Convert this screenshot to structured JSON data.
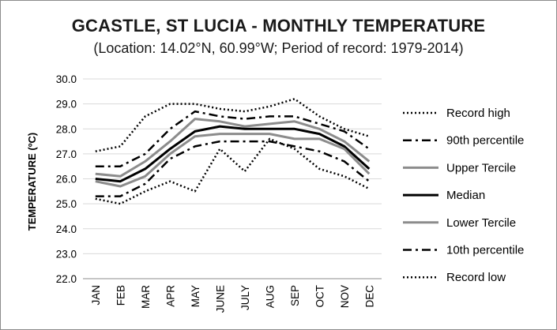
{
  "chart_data": {
    "type": "line",
    "title": "GCASTLE, ST LUCIA - MONTHLY TEMPERATURE",
    "subtitle": "(Location: 14.02°N, 60.99°W; Period of record: 1979-2014)",
    "xlabel": "",
    "ylabel": "TEMPERATURE (ºC)",
    "ylim": [
      22.0,
      30.0
    ],
    "yticks": [
      "22.0",
      "23.0",
      "24.0",
      "25.0",
      "26.0",
      "27.0",
      "28.0",
      "29.0",
      "30.0"
    ],
    "categories": [
      "JAN",
      "FEB",
      "MAR",
      "APR",
      "MAY",
      "JUNE",
      "JULY",
      "AUG",
      "SEP",
      "OCT",
      "NOV",
      "DEC"
    ],
    "grid": "horizontal",
    "legend_position": "right",
    "series": [
      {
        "name": "Record high",
        "style": "dotted",
        "color": "#000000",
        "values": [
          27.1,
          27.3,
          28.5,
          29.0,
          29.0,
          28.8,
          28.7,
          28.9,
          29.2,
          28.5,
          28.0,
          27.7
        ]
      },
      {
        "name": "90th percentile",
        "style": "dashdot",
        "color": "#000000",
        "values": [
          26.5,
          26.5,
          27.0,
          28.0,
          28.7,
          28.5,
          28.4,
          28.5,
          28.5,
          28.2,
          27.9,
          27.2
        ]
      },
      {
        "name": "Upper Tercile",
        "style": "solid",
        "color": "#8c8c8c",
        "values": [
          26.2,
          26.1,
          26.7,
          27.5,
          28.4,
          28.3,
          28.1,
          28.2,
          28.3,
          28.0,
          27.5,
          26.7
        ]
      },
      {
        "name": "Median",
        "style": "solid",
        "color": "#000000",
        "values": [
          26.0,
          25.9,
          26.4,
          27.2,
          27.9,
          28.1,
          28.0,
          28.0,
          28.0,
          27.8,
          27.3,
          26.4
        ]
      },
      {
        "name": "Lower Tercile",
        "style": "solid",
        "color": "#8c8c8c",
        "values": [
          25.9,
          25.7,
          26.1,
          27.0,
          27.7,
          27.8,
          27.8,
          27.8,
          27.6,
          27.6,
          27.2,
          26.2
        ]
      },
      {
        "name": "10th percentile",
        "style": "dashdot",
        "color": "#000000",
        "values": [
          25.3,
          25.3,
          25.8,
          26.8,
          27.3,
          27.5,
          27.5,
          27.5,
          27.3,
          27.1,
          26.7,
          25.9
        ]
      },
      {
        "name": "Record low",
        "style": "dotted",
        "color": "#000000",
        "values": [
          25.2,
          25.0,
          25.5,
          25.9,
          25.5,
          27.2,
          26.3,
          27.6,
          27.2,
          26.4,
          26.1,
          25.6
        ]
      }
    ]
  }
}
